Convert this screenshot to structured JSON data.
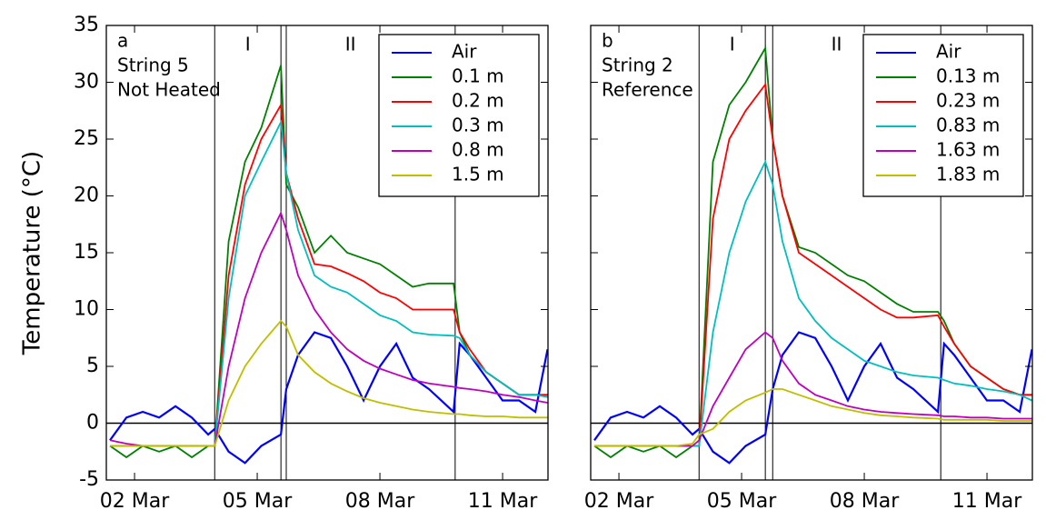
{
  "chart_data": [
    {
      "type": "line",
      "ylabel": "Temperature (°C)",
      "note": [
        "a",
        "String 5",
        "Not Heated"
      ],
      "annotations": [
        "I",
        "II"
      ],
      "vlines": [
        3.96,
        5.58,
        5.71,
        9.84
      ],
      "hline": 0,
      "legend": "upper right",
      "x": [
        1.4,
        1.8,
        2.2,
        2.6,
        3.0,
        3.4,
        3.8,
        3.96,
        4.3,
        4.7,
        5.1,
        5.58,
        5.71,
        6.0,
        6.4,
        6.8,
        7.2,
        7.6,
        8.0,
        8.4,
        8.8,
        9.2,
        9.8,
        9.95,
        10.2,
        10.6,
        11.0,
        11.4,
        11.8,
        12.1
      ],
      "xlim": [
        1.31,
        12.11
      ],
      "ylim": [
        -5,
        35
      ],
      "xticks": [
        {
          "value": 2,
          "label": "02 Mar"
        },
        {
          "value": 5,
          "label": "05 Mar"
        },
        {
          "value": 8,
          "label": "08 Mar"
        },
        {
          "value": 11,
          "label": "11 Mar"
        }
      ],
      "yticks": [
        -5,
        0,
        5,
        10,
        15,
        20,
        25,
        30,
        35
      ],
      "series": [
        {
          "name": "Air",
          "color": "#0000ff",
          "values": [
            -1.5,
            0.5,
            1.0,
            0.5,
            1.5,
            0.5,
            -1.0,
            -0.5,
            -2.5,
            -3.5,
            -2,
            -1,
            3,
            6,
            8,
            7.5,
            5,
            2,
            5,
            7,
            4,
            3,
            1,
            7,
            6,
            4,
            2,
            2,
            1,
            6.5
          ]
        },
        {
          "name": "0.1 m",
          "color": "#008000",
          "values": [
            -2,
            -3,
            -2,
            -2.5,
            -2,
            -3,
            -2,
            -2,
            16,
            23,
            26,
            31.5,
            21,
            19,
            15,
            16.5,
            15,
            14.5,
            14,
            13,
            12,
            12.3,
            12.3,
            8,
            6,
            4.5,
            3.5,
            2.5,
            2.5,
            2.5
          ]
        },
        {
          "name": "0.2 m",
          "color": "#ff0000",
          "values": [
            -2,
            -2,
            -2,
            -2,
            -2,
            -2,
            -2,
            -2,
            13,
            21,
            25,
            28,
            22,
            18,
            14,
            13.8,
            13.2,
            12.5,
            11.5,
            11,
            10,
            10,
            10,
            8,
            6.5,
            4.5,
            3.5,
            2.5,
            2.5,
            2.5
          ]
        },
        {
          "name": "0.3 m",
          "color": "#00bfbf",
          "values": [
            -2,
            -2,
            -2,
            -2,
            -2,
            -2,
            -2,
            -2,
            11,
            20,
            23,
            26.5,
            22,
            17,
            13,
            12,
            11.5,
            10.5,
            9.5,
            9,
            8,
            7.8,
            7.7,
            7.5,
            6,
            4.5,
            3.5,
            2.5,
            2.5,
            2.3
          ]
        },
        {
          "name": "0.8 m",
          "color": "#bf00bf",
          "values": [
            -1.5,
            -1.8,
            -2,
            -2,
            -2,
            -2,
            -2,
            -2,
            5,
            11,
            15,
            18.5,
            17,
            13,
            10,
            8,
            6.5,
            5.5,
            4.8,
            4.3,
            3.8,
            3.5,
            3.2,
            3.1,
            3,
            2.8,
            2.5,
            2.3,
            2,
            1.8
          ]
        },
        {
          "name": "1.5 m",
          "color": "#bfbf00",
          "values": [
            -2,
            -2,
            -2,
            -2,
            -2,
            -2,
            -2,
            -2,
            2,
            5,
            7,
            9,
            8.5,
            6,
            4.5,
            3.5,
            2.8,
            2.2,
            1.8,
            1.5,
            1.2,
            1,
            0.8,
            0.8,
            0.7,
            0.6,
            0.6,
            0.5,
            0.5,
            0.5
          ]
        }
      ]
    },
    {
      "type": "line",
      "note": [
        "b",
        "String 2",
        "Reference"
      ],
      "annotations": [
        "I",
        "II"
      ],
      "vlines": [
        3.96,
        5.58,
        5.76,
        9.87
      ],
      "hline": 0,
      "legend": "upper right",
      "x": [
        1.4,
        1.8,
        2.2,
        2.6,
        3.0,
        3.4,
        3.8,
        3.96,
        4.3,
        4.7,
        5.1,
        5.58,
        5.76,
        6.0,
        6.4,
        6.8,
        7.2,
        7.6,
        8.0,
        8.4,
        8.8,
        9.2,
        9.8,
        9.95,
        10.2,
        10.6,
        11.0,
        11.4,
        11.8,
        12.1
      ],
      "xlim": [
        1.31,
        12.11
      ],
      "ylim": [
        -5,
        35
      ],
      "xticks": [
        {
          "value": 2,
          "label": "02 Mar"
        },
        {
          "value": 5,
          "label": "05 Mar"
        },
        {
          "value": 8,
          "label": "08 Mar"
        },
        {
          "value": 11,
          "label": "11 Mar"
        }
      ],
      "yticks": [
        -5,
        0,
        5,
        10,
        15,
        20,
        25,
        30,
        35
      ],
      "series": [
        {
          "name": "Air",
          "color": "#0000ff",
          "values": [
            -1.5,
            0.5,
            1.0,
            0.5,
            1.5,
            0.5,
            -1.0,
            -0.5,
            -2.5,
            -3.5,
            -2,
            -1,
            3,
            6,
            8,
            7.5,
            5,
            2,
            5,
            7,
            4,
            3,
            1,
            7,
            6,
            4,
            2,
            2,
            1,
            6.5
          ]
        },
        {
          "name": "0.13 m",
          "color": "#008000",
          "values": [
            -2,
            -3,
            -2,
            -2.5,
            -2,
            -3,
            -2,
            -2,
            23,
            28,
            30,
            33,
            25,
            20,
            15.5,
            15,
            14,
            13,
            12.5,
            11.5,
            10.5,
            9.8,
            9.8,
            9,
            7,
            5,
            4,
            3,
            2.5,
            2.5
          ]
        },
        {
          "name": "0.23 m",
          "color": "#ff0000",
          "values": [
            -2,
            -2,
            -2,
            -2,
            -2,
            -2,
            -2,
            -2,
            18,
            25,
            27.5,
            29.8,
            25,
            20,
            15,
            14,
            13,
            12,
            11,
            10,
            9.3,
            9.3,
            9.5,
            8.5,
            7,
            5,
            4,
            3,
            2.5,
            2.5
          ]
        },
        {
          "name": "0.83 m",
          "color": "#00bfbf",
          "values": [
            -2,
            -2,
            -2,
            -2,
            -2,
            -2,
            -2,
            -2,
            8,
            15,
            19.5,
            23,
            21,
            16,
            11,
            9,
            7.5,
            6.5,
            5.5,
            5,
            4.5,
            4.2,
            4,
            3.8,
            3.5,
            3.3,
            3,
            2.8,
            2.5,
            2
          ]
        },
        {
          "name": "1.63 m",
          "color": "#bf00bf",
          "values": [
            -2,
            -2,
            -2,
            -2,
            -2,
            -2,
            -2,
            -1.5,
            1.5,
            4,
            6.5,
            8,
            7.5,
            5.5,
            3.5,
            2.5,
            2,
            1.5,
            1.2,
            1,
            0.9,
            0.8,
            0.7,
            0.6,
            0.6,
            0.5,
            0.5,
            0.4,
            0.4,
            0.4
          ]
        },
        {
          "name": "1.83 m",
          "color": "#bfbf00",
          "values": [
            -2,
            -2,
            -2,
            -2,
            -2,
            -2,
            -1.8,
            -1,
            -0.5,
            1,
            2,
            2.7,
            3,
            3,
            2.5,
            2,
            1.5,
            1.2,
            0.9,
            0.7,
            0.6,
            0.5,
            0.4,
            0.3,
            0.3,
            0.3,
            0.3,
            0.2,
            0.2,
            0.2
          ]
        }
      ]
    }
  ]
}
